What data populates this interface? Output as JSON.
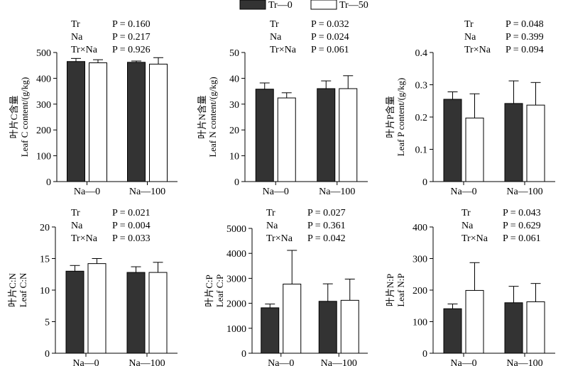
{
  "legend": [
    {
      "label": "Tr—0",
      "color": "#333333"
    },
    {
      "label": "Tr—50",
      "color": "#ffffff"
    }
  ],
  "chart_data": [
    {
      "type": "bar",
      "ylabel_cn": "叶片C含量",
      "ylabel_en": "Leaf C content/(g/kg)",
      "categories": [
        "Na—0",
        "Na—100"
      ],
      "ylim": [
        0,
        500
      ],
      "yticks": [
        0,
        100,
        200,
        300,
        400,
        500
      ],
      "series": [
        {
          "name": "Tr—0",
          "values": [
            465,
            462
          ],
          "errors": [
            12,
            5
          ]
        },
        {
          "name": "Tr—50",
          "values": [
            460,
            455
          ],
          "errors": [
            12,
            25
          ]
        }
      ],
      "stats": [
        {
          "factor": "Tr",
          "p": "P = 0.160"
        },
        {
          "factor": "Na",
          "p": "P = 0.217"
        },
        {
          "factor": "Tr×Na",
          "p": "P = 0.926"
        }
      ]
    },
    {
      "type": "bar",
      "ylabel_cn": "叶片N含量",
      "ylabel_en": "Leaf N content/(g/kg)",
      "categories": [
        "Na—0",
        "Na—100"
      ],
      "ylim": [
        0,
        50
      ],
      "yticks": [
        0,
        10,
        20,
        30,
        40,
        50
      ],
      "series": [
        {
          "name": "Tr—0",
          "values": [
            35.8,
            36
          ],
          "errors": [
            2.4,
            3
          ]
        },
        {
          "name": "Tr—50",
          "values": [
            32.4,
            36
          ],
          "errors": [
            2,
            5
          ]
        }
      ],
      "stats": [
        {
          "factor": "Tr",
          "p": "P = 0.032"
        },
        {
          "factor": "Na",
          "p": "P = 0.024"
        },
        {
          "factor": "Tr×Na",
          "p": "P = 0.061"
        }
      ]
    },
    {
      "type": "bar",
      "ylabel_cn": "叶片P含量",
      "ylabel_en": "Leaf P content/(g/kg)",
      "categories": [
        "Na—0",
        "Na—100"
      ],
      "ylim": [
        0,
        0.4
      ],
      "yticks": [
        0,
        0.1,
        0.2,
        0.3,
        0.4
      ],
      "series": [
        {
          "name": "Tr—0",
          "values": [
            0.255,
            0.242
          ],
          "errors": [
            0.023,
            0.07
          ]
        },
        {
          "name": "Tr—50",
          "values": [
            0.197,
            0.237
          ],
          "errors": [
            0.075,
            0.07
          ]
        }
      ],
      "stats": [
        {
          "factor": "Tr",
          "p": "P = 0.048"
        },
        {
          "factor": "Na",
          "p": "P = 0.399"
        },
        {
          "factor": "Tr×Na",
          "p": "P = 0.094"
        }
      ]
    },
    {
      "type": "bar",
      "ylabel_cn": "叶片C:N",
      "ylabel_en": "Leaf C:N",
      "categories": [
        "Na—0",
        "Na—100"
      ],
      "ylim": [
        0,
        20
      ],
      "yticks": [
        0,
        5,
        10,
        15,
        20
      ],
      "series": [
        {
          "name": "Tr—0",
          "values": [
            13,
            12.8
          ],
          "errors": [
            0.9,
            0.9
          ]
        },
        {
          "name": "Tr—50",
          "values": [
            14.2,
            12.8
          ],
          "errors": [
            0.8,
            1.6
          ]
        }
      ],
      "stats": [
        {
          "factor": "Tr",
          "p": "P = 0.021"
        },
        {
          "factor": "Na",
          "p": "P = 0.004"
        },
        {
          "factor": "Tr×Na",
          "p": "P = 0.033"
        }
      ]
    },
    {
      "type": "bar",
      "ylabel_cn": "叶片C:P",
      "ylabel_en": "Leaf C:P",
      "categories": [
        "Na—0",
        "Na—100"
      ],
      "ylim": [
        0,
        5000
      ],
      "yticks": [
        0,
        1000,
        2000,
        3000,
        4000,
        5000
      ],
      "series": [
        {
          "name": "Tr—0",
          "values": [
            1820,
            2080
          ],
          "errors": [
            150,
            700
          ]
        },
        {
          "name": "Tr—50",
          "values": [
            2770,
            2120
          ],
          "errors": [
            1350,
            850
          ]
        }
      ],
      "stats": [
        {
          "factor": "Tr",
          "p": "P = 0.027"
        },
        {
          "factor": "Na",
          "p": "P = 0.361"
        },
        {
          "factor": "Tr×Na",
          "p": "P = 0.042"
        }
      ]
    },
    {
      "type": "bar",
      "ylabel_cn": "叶片N:P",
      "ylabel_en": "Leaf N:P",
      "categories": [
        "Na—0",
        "Na—100"
      ],
      "ylim": [
        0,
        400
      ],
      "yticks": [
        0,
        100,
        200,
        300,
        400
      ],
      "series": [
        {
          "name": "Tr—0",
          "values": [
            141,
            160
          ],
          "errors": [
            15,
            52
          ]
        },
        {
          "name": "Tr—50",
          "values": [
            199,
            163
          ],
          "errors": [
            88,
            58
          ]
        }
      ],
      "stats": [
        {
          "factor": "Tr",
          "p": "P = 0.043"
        },
        {
          "factor": "Na",
          "p": "P = 0.629"
        },
        {
          "factor": "Tr×Na",
          "p": "P = 0.061"
        }
      ]
    }
  ]
}
